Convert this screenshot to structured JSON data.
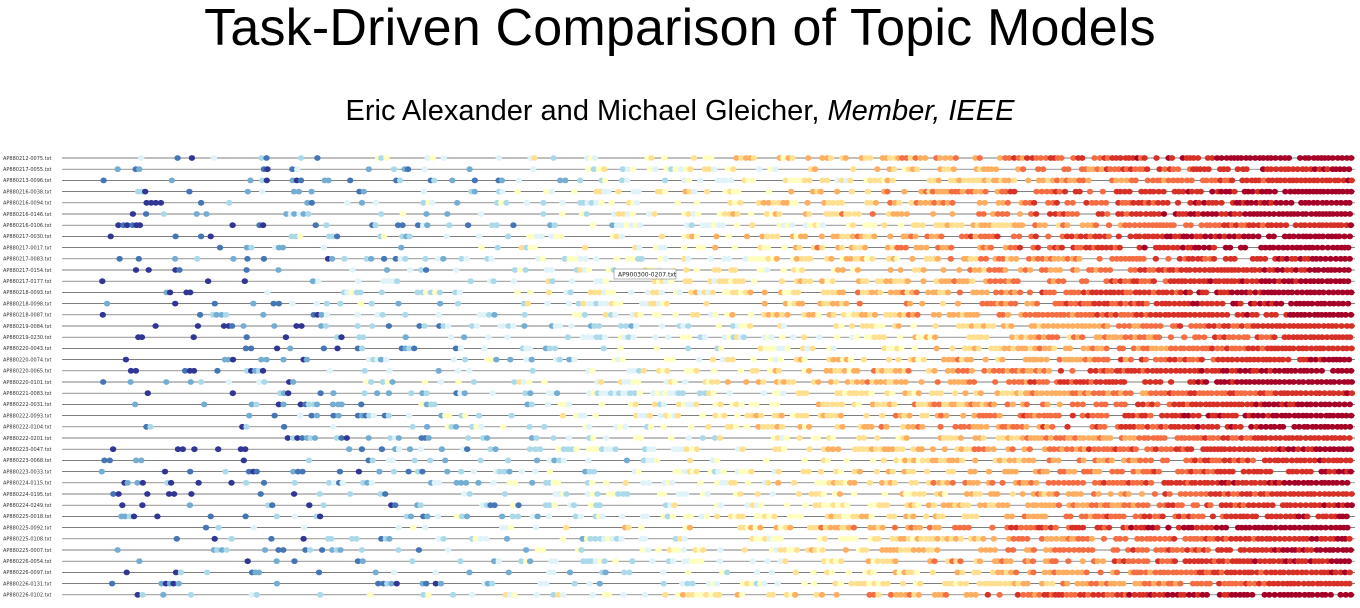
{
  "paper": {
    "title": "Task-Driven Comparison of Topic Models",
    "authors": "Eric Alexander and Michael Gleicher,",
    "affiliation": "Member, IEEE"
  },
  "figure": {
    "tooltip": "AP900300-0207.txt",
    "colors": {
      "line": "#555555",
      "ramp": [
        "#313695",
        "#4575b4",
        "#74add1",
        "#abd9e9",
        "#e0f3f8",
        "#ffffbf",
        "#fee090",
        "#fdae61",
        "#f46d43",
        "#d73027",
        "#a50026"
      ]
    },
    "documents": [
      "AP880212-0075.txt",
      "AP880217-0055.txt",
      "AP880213-0096.txt",
      "AP880216-0038.txt",
      "AP880216-0094.txt",
      "AP880216-0146.txt",
      "AP880216-0106.txt",
      "AP880217-0030.txt",
      "AP880217-0017.txt",
      "AP880217-0083.txt",
      "AP880217-0154.txt",
      "AP880217-0177.txt",
      "AP880218-0093.txt",
      "AP880218-0098.txt",
      "AP880218-0087.txt",
      "AP880219-0084.txt",
      "AP880219-0230.txt",
      "AP880220-0043.txt",
      "AP880220-0074.txt",
      "AP880220-0065.txt",
      "AP880220-0101.txt",
      "AP880221-0083.txt",
      "AP880222-0031.txt",
      "AP880222-0093.txt",
      "AP880222-0104.txt",
      "AP880222-0201.txt",
      "AP880223-0047.txt",
      "AP880223-0068.txt",
      "AP880223-0033.txt",
      "AP880224-0115.txt",
      "AP880224-0195.txt",
      "AP880224-0249.txt",
      "AP880225-0018.txt",
      "AP880225-0092.txt",
      "AP880225-0108.txt",
      "AP880225-0007.txt",
      "AP880226-0054.txt",
      "AP880226-0097.txt",
      "AP880226-0131.txt",
      "AP880226-0102.txt"
    ]
  }
}
